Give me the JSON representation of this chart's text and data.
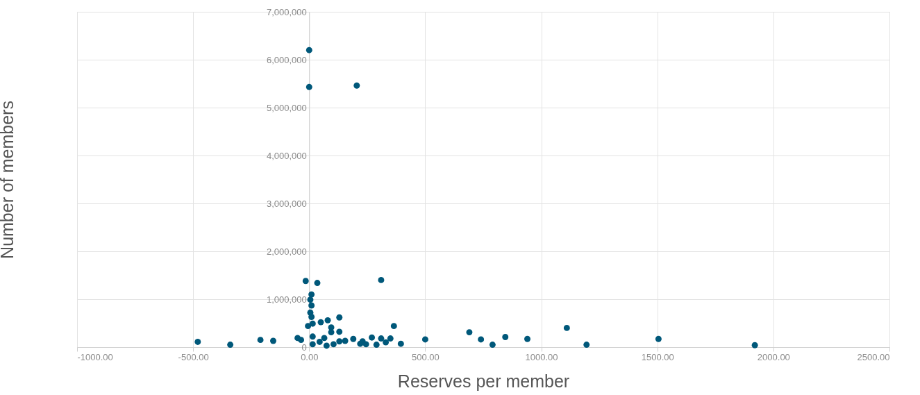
{
  "chart_data": {
    "type": "scatter",
    "xlabel": "Reserves per member",
    "ylabel": "Number of members",
    "xlim": [
      -1000,
      2500
    ],
    "xticks": [
      {
        "value": -1000,
        "label": "-1000.00"
      },
      {
        "value": -500,
        "label": "-500.00"
      },
      {
        "value": 0,
        "label": "0.00"
      },
      {
        "value": 500,
        "label": "500.00"
      },
      {
        "value": 1000,
        "label": "1000.00"
      },
      {
        "value": 1500,
        "label": "1500.00"
      },
      {
        "value": 2000,
        "label": "2000.00"
      },
      {
        "value": 2500,
        "label": "2500.00"
      }
    ],
    "ylim": [
      0,
      7000000
    ],
    "yticks": [
      0,
      {
        "value": 1000000,
        "label": "1,000,000"
      },
      {
        "value": 2000000,
        "label": "2,000,000"
      },
      {
        "value": 3000000,
        "label": "3,000,000"
      },
      {
        "value": 4000000,
        "label": "4,000,000"
      },
      {
        "value": 5000000,
        "label": "5,000,000"
      },
      {
        "value": 6000000,
        "label": "6,000,000"
      },
      {
        "value": 7000000,
        "label": "7,000,000"
      }
    ],
    "grid": true,
    "marker": "circle",
    "series": [
      {
        "color": "#00587a",
        "x": [
          -480,
          -340,
          -210,
          -155,
          500,
          690,
          740,
          790,
          845,
          940,
          1110,
          1195,
          1505,
          1920,
          0,
          0,
          205,
          -15,
          35,
          310,
          10,
          5,
          10,
          5,
          10,
          50,
          80,
          130,
          -5,
          15,
          95,
          95,
          130,
          365,
          -50,
          -35,
          155,
          190,
          220,
          230,
          245,
          270,
          290,
          310,
          330,
          350,
          395,
          130,
          105,
          65,
          15,
          15,
          45,
          75
        ],
        "values": [
          110000,
          50000,
          150000,
          130000,
          160000,
          310000,
          160000,
          50000,
          210000,
          170000,
          400000,
          50000,
          170000,
          40000,
          6200000,
          5430000,
          5460000,
          1380000,
          1340000,
          1400000,
          1100000,
          990000,
          870000,
          720000,
          630000,
          520000,
          560000,
          620000,
          440000,
          490000,
          410000,
          310000,
          320000,
          440000,
          190000,
          150000,
          130000,
          170000,
          70000,
          120000,
          60000,
          200000,
          50000,
          180000,
          100000,
          180000,
          70000,
          120000,
          60000,
          190000,
          60000,
          220000,
          110000,
          30000
        ]
      }
    ]
  }
}
